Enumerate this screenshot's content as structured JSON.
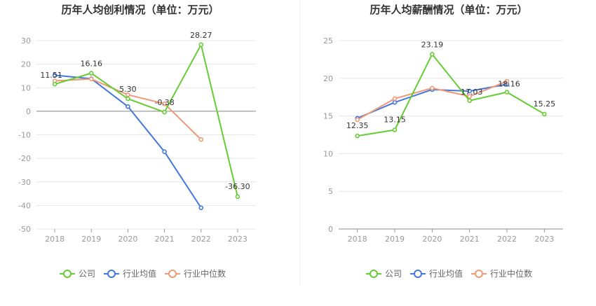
{
  "colors": {
    "company": "#66cc33",
    "industry_avg": "#4477dd",
    "industry_median": "#ee9977",
    "grid": "#e6e6e6",
    "zero_axis": "#888888"
  },
  "chart_data": [
    {
      "type": "line",
      "title": "历年人均创利情况（单位：万元）",
      "categories": [
        "2018",
        "2019",
        "2020",
        "2021",
        "2022",
        "2023"
      ],
      "ylim": [
        -50,
        30
      ],
      "yticks": [
        30,
        20,
        10,
        0,
        -10,
        -20,
        -30,
        -40,
        -50
      ],
      "ytick_labels": [
        "30",
        "20",
        "10",
        "0",
        "-10",
        "-20",
        "-30",
        "-40",
        "-50"
      ],
      "grid": true,
      "legend_position": "bottom",
      "series": [
        {
          "name": "公司",
          "color_key": "company",
          "values": [
            11.51,
            16.16,
            5.3,
            -0.38,
            28.27,
            -36.3
          ],
          "labels": [
            "11.51",
            "16.16",
            "5.30",
            "-0.38",
            "28.27",
            "-36.30"
          ]
        },
        {
          "name": "行业均值",
          "color_key": "industry_avg",
          "values": [
            15.3,
            13.8,
            2.0,
            -17.2,
            -41.0,
            null
          ]
        },
        {
          "name": "行业中位数",
          "color_key": "industry_median",
          "values": [
            12.9,
            13.7,
            7.0,
            3.2,
            -12.0,
            null
          ]
        }
      ]
    },
    {
      "type": "line",
      "title": "历年人均薪酬情况（单位：万元）",
      "categories": [
        "2018",
        "2019",
        "2020",
        "2021",
        "2022",
        "2023"
      ],
      "ylim": [
        0,
        25
      ],
      "yticks": [
        25,
        20,
        15,
        10,
        5,
        0
      ],
      "ytick_labels": [
        "25",
        "20",
        "15",
        "10",
        "5",
        "0"
      ],
      "grid": true,
      "legend_position": "bottom",
      "series": [
        {
          "name": "公司",
          "color_key": "company",
          "values": [
            12.35,
            13.15,
            23.19,
            17.03,
            18.16,
            15.25
          ],
          "labels": [
            "12.35",
            "13.15",
            "23.19",
            "17.03",
            "18.16",
            "15.25"
          ]
        },
        {
          "name": "行业均值",
          "color_key": "industry_avg",
          "values": [
            14.7,
            16.8,
            18.5,
            18.3,
            19.2,
            null
          ]
        },
        {
          "name": "行业中位数",
          "color_key": "industry_median",
          "values": [
            14.5,
            17.3,
            18.7,
            17.6,
            19.6,
            null
          ]
        }
      ]
    }
  ]
}
